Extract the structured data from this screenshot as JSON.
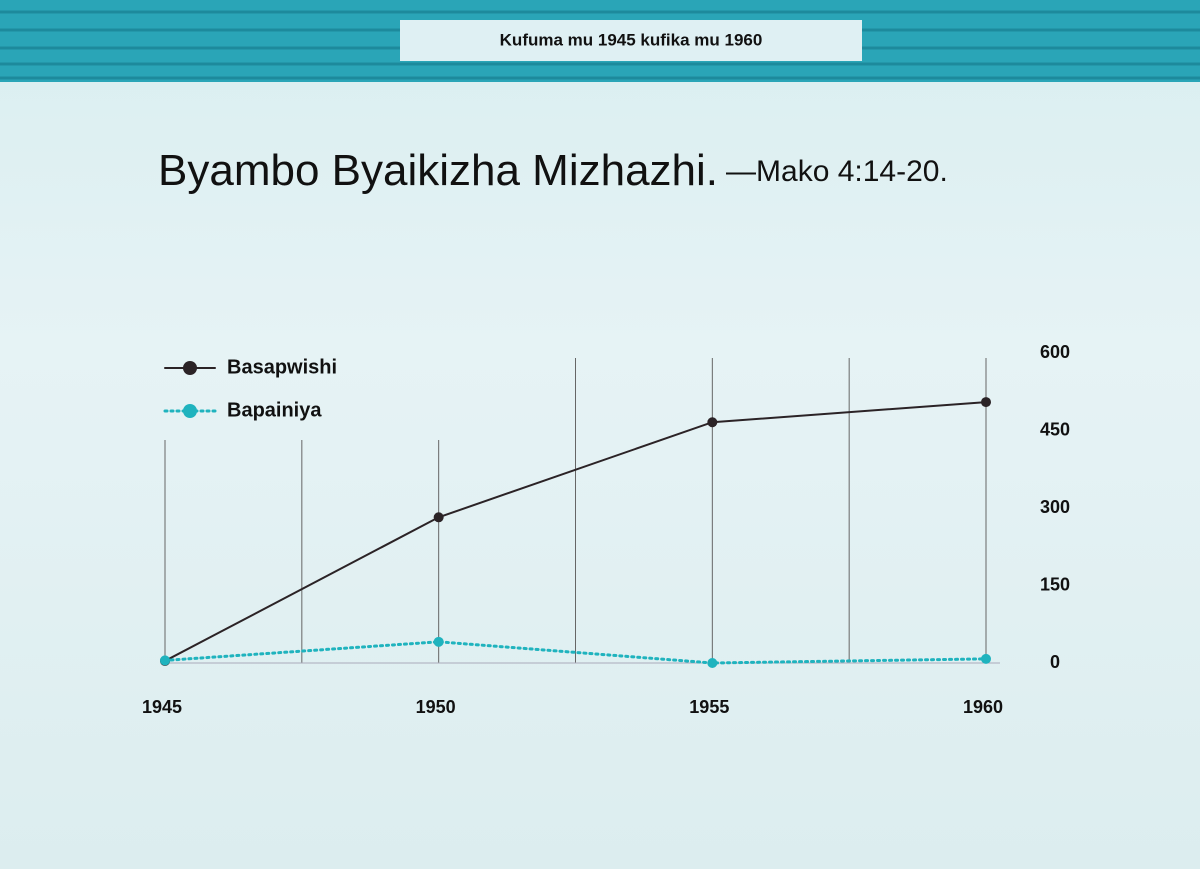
{
  "header": {
    "banner": "Kufuma mu 1945 kufika mu 1960"
  },
  "chart_data": {
    "type": "line",
    "title": "Byambo Byaikizha Mizhazhi.",
    "subtitle": "—Mako 4:14-20.",
    "x": [
      1945,
      1950,
      1955,
      1960
    ],
    "xlim": [
      1945,
      1960
    ],
    "xticks": [
      1945,
      1950,
      1955,
      1960
    ],
    "ylim": [
      0,
      600
    ],
    "yticks": [
      0,
      150,
      300,
      450,
      600
    ],
    "y_axis_side": "right",
    "grid": true,
    "legend": "upper left",
    "series": [
      {
        "name": "Basapwishi",
        "color": "#2b2326",
        "style": "solid",
        "values": [
          4,
          282,
          466,
          505
        ]
      },
      {
        "name": "Bapainiya",
        "color": "#1fb3be",
        "style": "dotted",
        "values": [
          5,
          41,
          0,
          8
        ]
      }
    ]
  }
}
